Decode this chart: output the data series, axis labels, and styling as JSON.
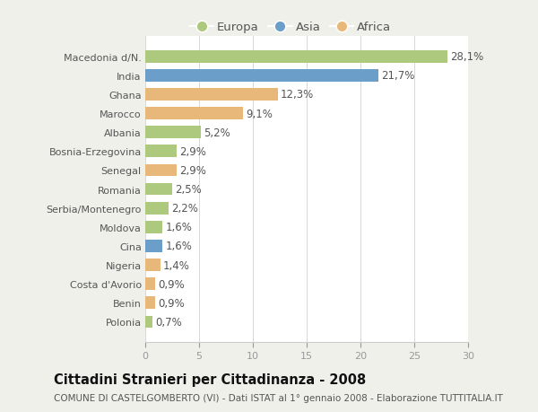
{
  "categories": [
    "Macedonia d/N.",
    "India",
    "Ghana",
    "Marocco",
    "Albania",
    "Bosnia-Erzegovina",
    "Senegal",
    "Romania",
    "Serbia/Montenegro",
    "Moldova",
    "Cina",
    "Nigeria",
    "Costa d'Avorio",
    "Benin",
    "Polonia"
  ],
  "values": [
    28.1,
    21.7,
    12.3,
    9.1,
    5.2,
    2.9,
    2.9,
    2.5,
    2.2,
    1.6,
    1.6,
    1.4,
    0.9,
    0.9,
    0.7
  ],
  "labels": [
    "28,1%",
    "21,7%",
    "12,3%",
    "9,1%",
    "5,2%",
    "2,9%",
    "2,9%",
    "2,5%",
    "2,2%",
    "1,6%",
    "1,6%",
    "1,4%",
    "0,9%",
    "0,9%",
    "0,7%"
  ],
  "continents": [
    "Europa",
    "Asia",
    "Africa",
    "Africa",
    "Europa",
    "Europa",
    "Africa",
    "Europa",
    "Europa",
    "Europa",
    "Asia",
    "Africa",
    "Africa",
    "Africa",
    "Europa"
  ],
  "colors": {
    "Europa": "#adc97e",
    "Asia": "#6b9ec8",
    "Africa": "#e8b87a"
  },
  "title": "Cittadini Stranieri per Cittadinanza - 2008",
  "subtitle": "COMUNE DI CASTELGOMBERTO (VI) - Dati ISTAT al 1° gennaio 2008 - Elaborazione TUTTITALIA.IT",
  "xlim": [
    0,
    30
  ],
  "xticks": [
    0,
    5,
    10,
    15,
    20,
    25,
    30
  ],
  "background_color": "#f0f0eb",
  "plot_background": "#ffffff",
  "grid_color": "#d8d8d8",
  "bar_height": 0.65,
  "title_fontsize": 10.5,
  "subtitle_fontsize": 7.5,
  "label_fontsize": 8.5,
  "tick_fontsize": 8,
  "legend_fontsize": 9.5
}
